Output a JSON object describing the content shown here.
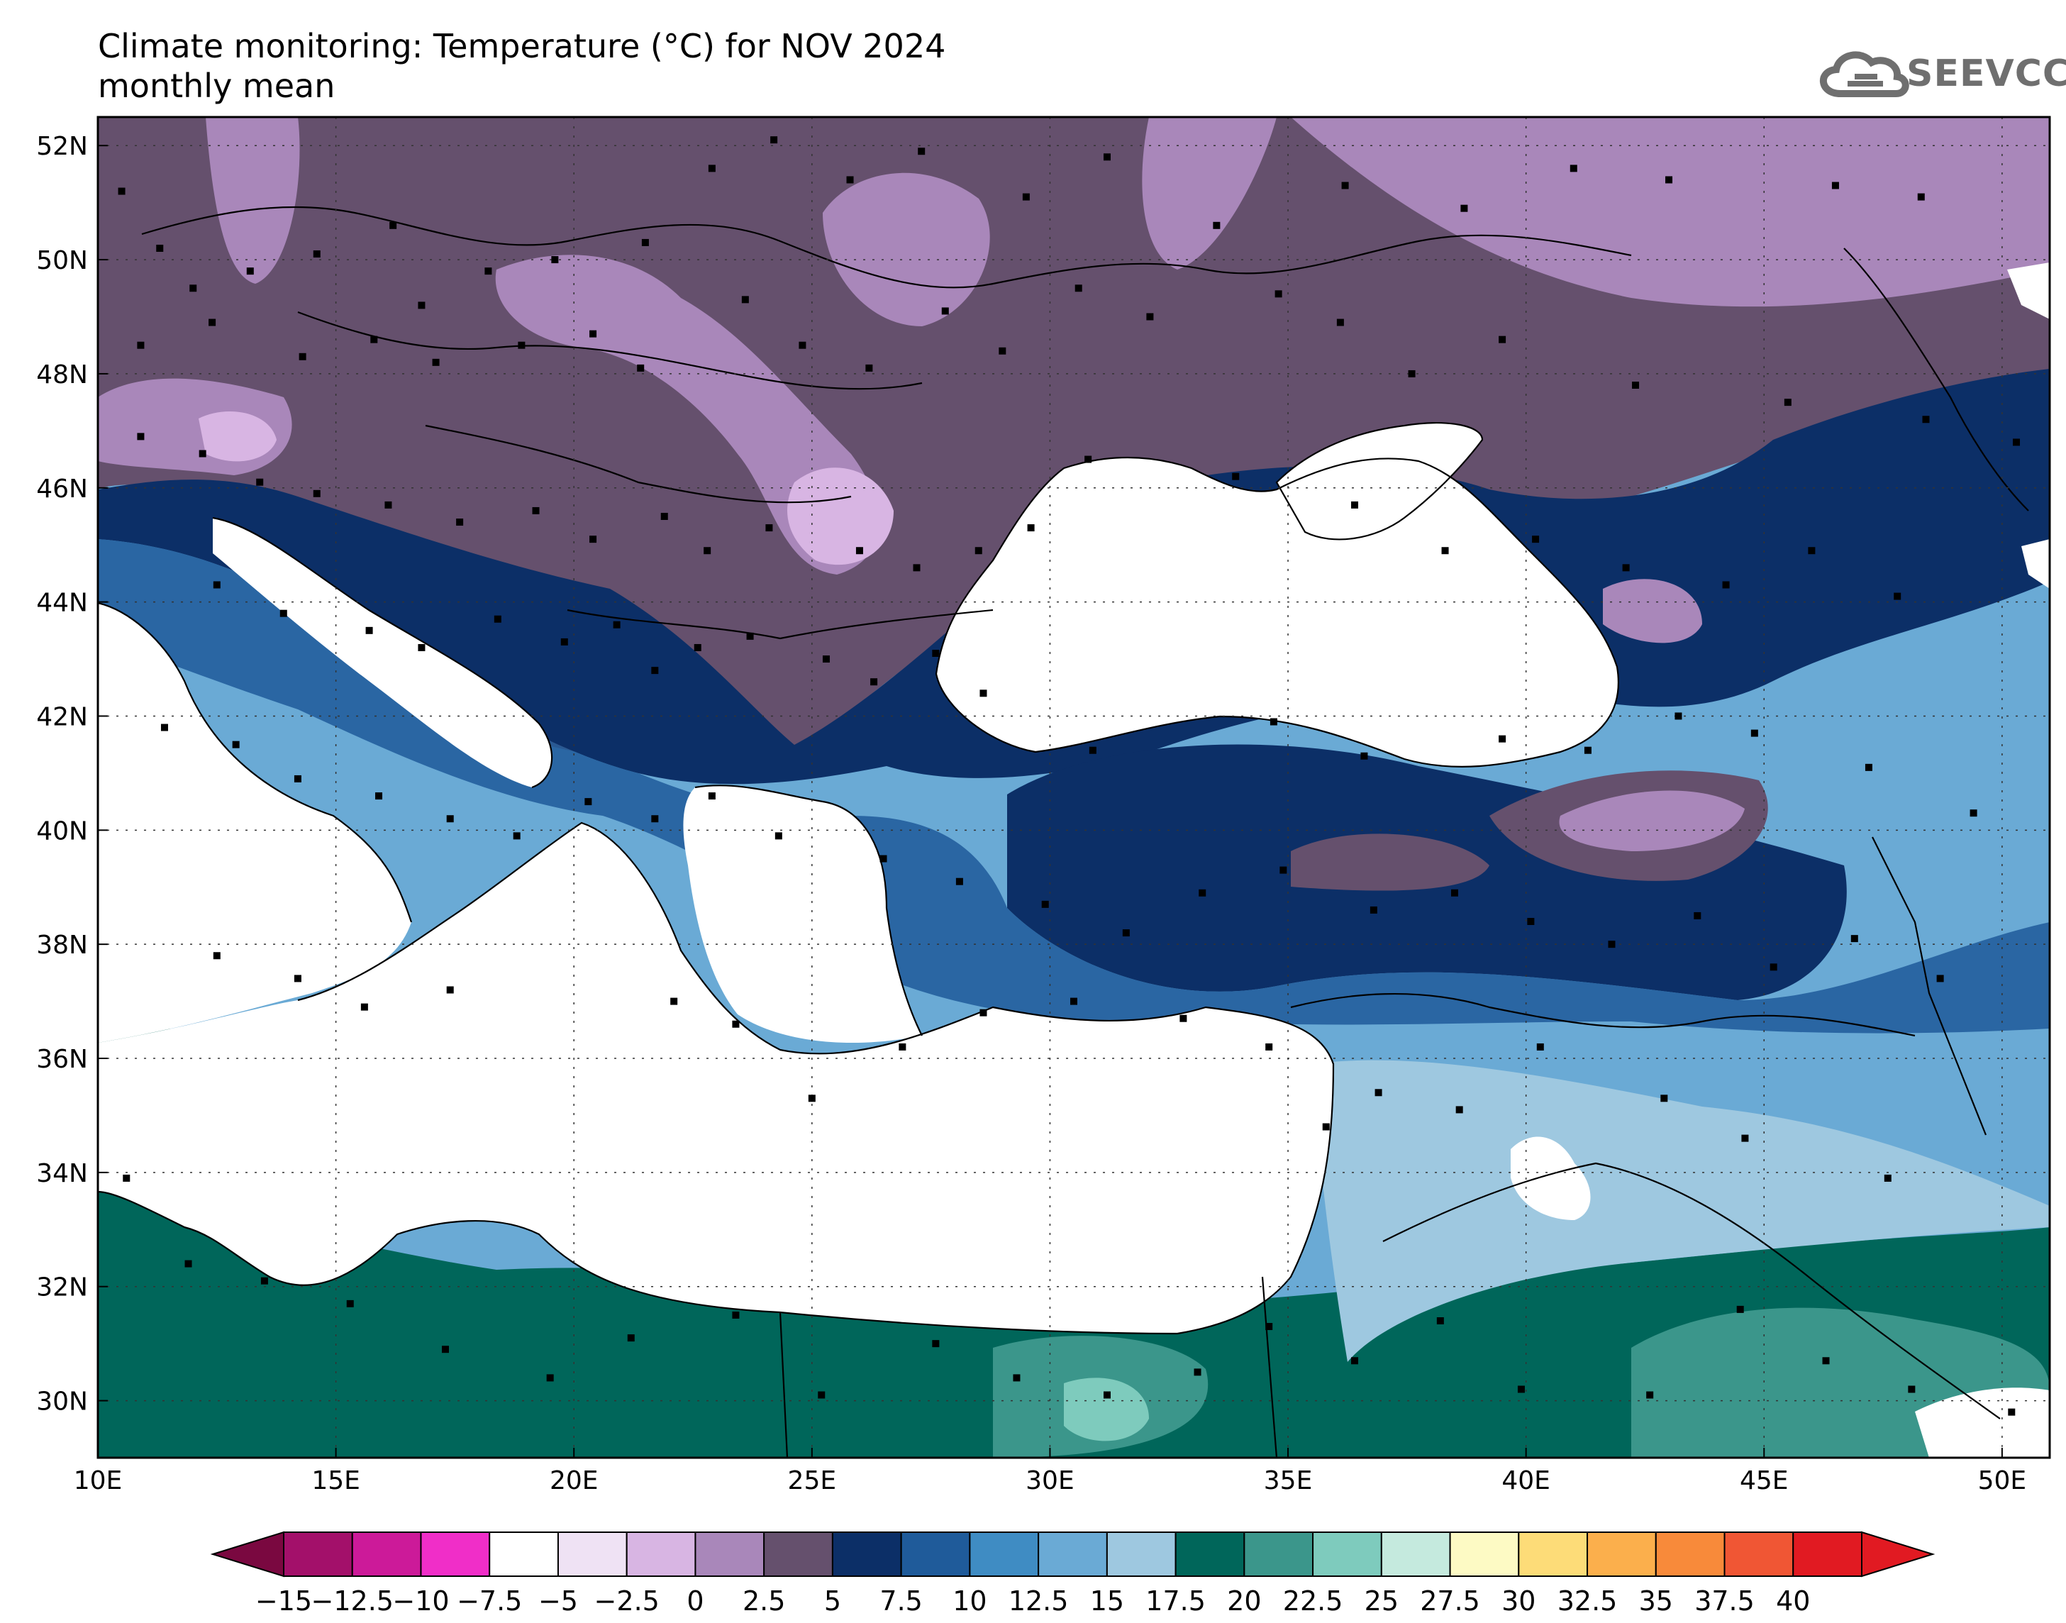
{
  "title": {
    "line1": "Climate monitoring: Temperature (°C) for NOV 2024",
    "line2": "monthly mean"
  },
  "logo": {
    "text": "SEEVCCC",
    "icon": "cloud-logo-icon"
  },
  "map": {
    "lon_range": [
      10,
      51
    ],
    "lat_range": [
      29,
      52.5
    ],
    "lon_ticks": [
      {
        "value": 10,
        "label": "10E"
      },
      {
        "value": 15,
        "label": "15E"
      },
      {
        "value": 20,
        "label": "20E"
      },
      {
        "value": 25,
        "label": "25E"
      },
      {
        "value": 30,
        "label": "30E"
      },
      {
        "value": 35,
        "label": "35E"
      },
      {
        "value": 40,
        "label": "40E"
      },
      {
        "value": 45,
        "label": "45E"
      },
      {
        "value": 50,
        "label": "50E"
      }
    ],
    "lat_ticks": [
      {
        "value": 30,
        "label": "30N"
      },
      {
        "value": 32,
        "label": "32N"
      },
      {
        "value": 34,
        "label": "34N"
      },
      {
        "value": 36,
        "label": "36N"
      },
      {
        "value": 38,
        "label": "38N"
      },
      {
        "value": 40,
        "label": "40N"
      },
      {
        "value": 42,
        "label": "42N"
      },
      {
        "value": 44,
        "label": "44N"
      },
      {
        "value": 46,
        "label": "46N"
      },
      {
        "value": 48,
        "label": "48N"
      },
      {
        "value": 50,
        "label": "50N"
      },
      {
        "value": 52,
        "label": "52N"
      }
    ],
    "grid": "dotted",
    "sea_fill": "#ffffff",
    "stations": [
      [
        10.5,
        51.2
      ],
      [
        11.3,
        50.2
      ],
      [
        12.0,
        49.5
      ],
      [
        13.2,
        49.8
      ],
      [
        14.6,
        50.1
      ],
      [
        16.2,
        50.6
      ],
      [
        16.8,
        49.2
      ],
      [
        18.2,
        49.8
      ],
      [
        19.6,
        50.0
      ],
      [
        21.5,
        50.3
      ],
      [
        22.9,
        51.6
      ],
      [
        24.2,
        52.1
      ],
      [
        25.8,
        51.4
      ],
      [
        27.3,
        51.9
      ],
      [
        29.5,
        51.1
      ],
      [
        31.2,
        51.8
      ],
      [
        33.5,
        50.6
      ],
      [
        36.2,
        51.3
      ],
      [
        38.7,
        50.9
      ],
      [
        41.0,
        51.6
      ],
      [
        43.0,
        51.4
      ],
      [
        46.5,
        51.3
      ],
      [
        48.3,
        51.1
      ],
      [
        10.9,
        48.5
      ],
      [
        12.4,
        48.9
      ],
      [
        14.3,
        48.3
      ],
      [
        15.8,
        48.6
      ],
      [
        17.1,
        48.2
      ],
      [
        18.9,
        48.5
      ],
      [
        20.4,
        48.7
      ],
      [
        21.4,
        48.1
      ],
      [
        23.6,
        49.3
      ],
      [
        24.8,
        48.5
      ],
      [
        26.2,
        48.1
      ],
      [
        27.8,
        49.1
      ],
      [
        29.0,
        48.4
      ],
      [
        30.6,
        49.5
      ],
      [
        32.1,
        49.0
      ],
      [
        34.8,
        49.4
      ],
      [
        36.1,
        48.9
      ],
      [
        37.6,
        48.0
      ],
      [
        39.5,
        48.6
      ],
      [
        42.3,
        47.8
      ],
      [
        45.5,
        47.5
      ],
      [
        48.4,
        47.2
      ],
      [
        50.3,
        46.8
      ],
      [
        10.9,
        46.9
      ],
      [
        12.2,
        46.6
      ],
      [
        13.4,
        46.1
      ],
      [
        14.6,
        45.9
      ],
      [
        16.1,
        45.7
      ],
      [
        17.6,
        45.4
      ],
      [
        19.2,
        45.6
      ],
      [
        20.4,
        45.1
      ],
      [
        21.9,
        45.5
      ],
      [
        22.8,
        44.9
      ],
      [
        24.1,
        45.3
      ],
      [
        26.0,
        44.9
      ],
      [
        27.2,
        44.6
      ],
      [
        28.5,
        44.9
      ],
      [
        29.6,
        45.3
      ],
      [
        30.8,
        46.5
      ],
      [
        33.9,
        46.2
      ],
      [
        36.4,
        45.7
      ],
      [
        38.3,
        44.9
      ],
      [
        40.2,
        45.1
      ],
      [
        42.1,
        44.6
      ],
      [
        44.2,
        44.3
      ],
      [
        46.0,
        44.9
      ],
      [
        47.8,
        44.1
      ],
      [
        12.5,
        44.3
      ],
      [
        13.9,
        43.8
      ],
      [
        15.7,
        43.5
      ],
      [
        16.8,
        43.2
      ],
      [
        18.4,
        43.7
      ],
      [
        19.8,
        43.3
      ],
      [
        20.9,
        43.6
      ],
      [
        21.7,
        42.8
      ],
      [
        22.6,
        43.2
      ],
      [
        23.7,
        43.4
      ],
      [
        25.3,
        43.0
      ],
      [
        26.3,
        42.6
      ],
      [
        27.6,
        43.1
      ],
      [
        28.6,
        42.4
      ],
      [
        30.9,
        41.4
      ],
      [
        34.7,
        41.9
      ],
      [
        36.6,
        41.3
      ],
      [
        39.5,
        41.6
      ],
      [
        41.3,
        41.4
      ],
      [
        43.2,
        42.0
      ],
      [
        44.8,
        41.7
      ],
      [
        47.2,
        41.1
      ],
      [
        49.4,
        40.3
      ],
      [
        11.4,
        41.8
      ],
      [
        12.9,
        41.5
      ],
      [
        14.2,
        40.9
      ],
      [
        15.9,
        40.6
      ],
      [
        17.4,
        40.2
      ],
      [
        18.8,
        39.9
      ],
      [
        20.3,
        40.5
      ],
      [
        21.7,
        40.2
      ],
      [
        22.9,
        40.6
      ],
      [
        24.3,
        39.9
      ],
      [
        26.5,
        39.5
      ],
      [
        28.1,
        39.1
      ],
      [
        29.9,
        38.7
      ],
      [
        31.6,
        38.2
      ],
      [
        33.2,
        38.9
      ],
      [
        34.9,
        39.3
      ],
      [
        36.8,
        38.6
      ],
      [
        38.5,
        38.9
      ],
      [
        40.1,
        38.4
      ],
      [
        41.8,
        38.0
      ],
      [
        43.6,
        38.5
      ],
      [
        45.2,
        37.6
      ],
      [
        46.9,
        38.1
      ],
      [
        48.7,
        37.4
      ],
      [
        12.5,
        37.8
      ],
      [
        14.2,
        37.4
      ],
      [
        15.6,
        36.9
      ],
      [
        17.4,
        37.2
      ],
      [
        22.1,
        37.0
      ],
      [
        23.4,
        36.6
      ],
      [
        25.0,
        35.3
      ],
      [
        26.9,
        36.2
      ],
      [
        28.6,
        36.8
      ],
      [
        30.5,
        37.0
      ],
      [
        32.8,
        36.7
      ],
      [
        34.6,
        36.2
      ],
      [
        35.8,
        34.8
      ],
      [
        36.9,
        35.4
      ],
      [
        38.6,
        35.1
      ],
      [
        40.3,
        36.2
      ],
      [
        42.9,
        35.3
      ],
      [
        44.6,
        34.6
      ],
      [
        47.6,
        33.9
      ],
      [
        10.6,
        33.9
      ],
      [
        11.9,
        32.4
      ],
      [
        13.5,
        32.1
      ],
      [
        15.3,
        31.7
      ],
      [
        17.3,
        30.9
      ],
      [
        19.5,
        30.4
      ],
      [
        21.2,
        31.1
      ],
      [
        23.4,
        31.5
      ],
      [
        25.2,
        30.1
      ],
      [
        27.6,
        31.0
      ],
      [
        29.3,
        30.4
      ],
      [
        31.2,
        30.1
      ],
      [
        33.1,
        30.5
      ],
      [
        34.6,
        31.3
      ],
      [
        36.4,
        30.7
      ],
      [
        38.2,
        31.4
      ],
      [
        39.9,
        30.2
      ],
      [
        42.6,
        30.1
      ],
      [
        44.5,
        31.6
      ],
      [
        46.3,
        30.7
      ],
      [
        48.1,
        30.2
      ],
      [
        50.2,
        29.8
      ]
    ]
  },
  "colorbar": {
    "labels": [
      "−15",
      "−12.5",
      "−10",
      "−7.5",
      "−5",
      "−2.5",
      "0",
      "2.5",
      "5",
      "7.5",
      "10",
      "12.5",
      "15",
      "17.5",
      "20",
      "22.5",
      "25",
      "27.5",
      "30",
      "32.5",
      "35",
      "37.5",
      "40"
    ],
    "colors": [
      "#7a0840",
      "#a3106a",
      "#cc1a99",
      "#f02ec8",
      "#ffffff",
      "#efe2f4",
      "#d8b5e3",
      "#a987ba",
      "#65506d",
      "#0c2f67",
      "#1f5b9a",
      "#3f8cc3",
      "#6aaad5",
      "#9ec8e0",
      "#00665a",
      "#3b968b",
      "#7ecbbd",
      "#c5eade",
      "#fdfac4",
      "#fddc78",
      "#fbaf4c",
      "#f88a3a",
      "#f05634",
      "#e11a22",
      "#e11a22"
    ],
    "under_color": "#7a0840",
    "over_color": "#e11a22"
  }
}
